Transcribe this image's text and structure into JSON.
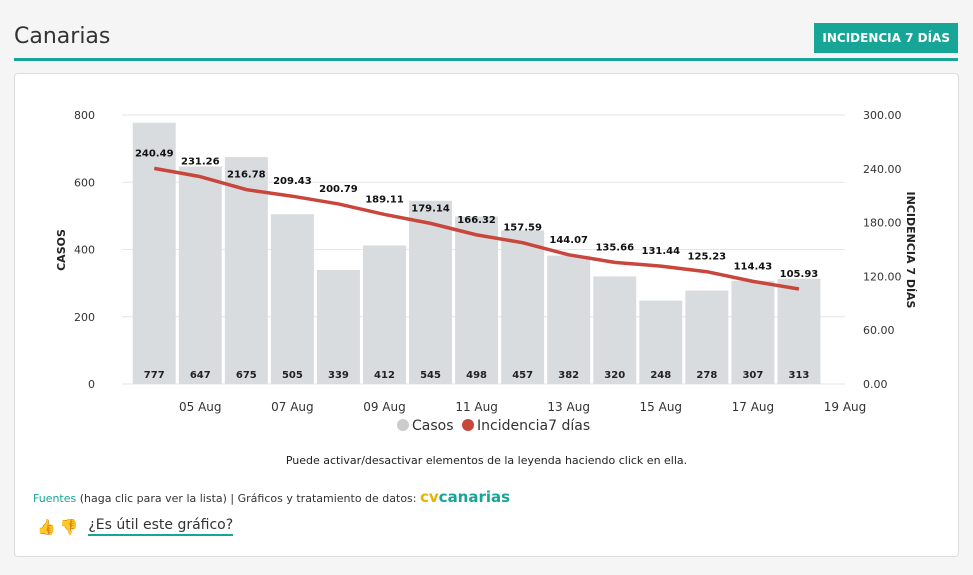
{
  "header": {
    "title": "Canarias",
    "badge": "INCIDENCIA 7 DÍAS"
  },
  "note": "Puede activar/desactivar elementos de la leyenda haciendo click en ella.",
  "sources": {
    "link": "Fuentes",
    "rest": " (haga clic para ver la lista) | Gráficos y tratamiento de datos: ",
    "brand_cv": "cv",
    "brand_name": "canarias"
  },
  "feedback": {
    "thumb_up": "👍",
    "thumb_down": "👎",
    "question": "¿Es útil este gráfico?"
  },
  "colors": {
    "accent": "#17a598",
    "bar": "#d9dcdf",
    "line": "#c9463d"
  },
  "chart_data": {
    "type": "bar+line",
    "title": "",
    "xlabel": "",
    "ylabel_left": "CASOS",
    "ylabel_right": "INCIDENCIA 7 DÍAS",
    "ylim_left": [
      0,
      800
    ],
    "ylim_right": [
      0,
      300
    ],
    "yticks_left": [
      "0",
      "200",
      "400",
      "600",
      "800"
    ],
    "yticks_right": [
      "0.00",
      "60.00",
      "120.00",
      "180.00",
      "240.00",
      "300.00"
    ],
    "x_ticks": [
      "05 Aug",
      "07 Aug",
      "09 Aug",
      "11 Aug",
      "13 Aug",
      "15 Aug",
      "17 Aug",
      "19 Aug"
    ],
    "x_range_days": [
      3.3,
      19
    ],
    "legend": [
      "Casos",
      "Incidencia7 días"
    ],
    "legend_position": "bottom",
    "series": [
      {
        "name": "Casos",
        "type": "bar",
        "x": [
          4,
          5,
          6,
          7,
          8,
          9,
          10,
          11,
          12,
          13,
          14,
          15,
          16,
          17,
          18
        ],
        "values": [
          777,
          647,
          675,
          505,
          339,
          412,
          545,
          498,
          457,
          382,
          320,
          248,
          278,
          307,
          313
        ],
        "labels": [
          "777",
          "647",
          "675",
          "505",
          "339",
          "412",
          "545",
          "498",
          "457",
          "382",
          "320",
          "248",
          "278",
          "307",
          "313"
        ]
      },
      {
        "name": "Incidencia7 días",
        "type": "line",
        "x": [
          4,
          5,
          6,
          7,
          8,
          9,
          10,
          11,
          12,
          13,
          14,
          15,
          16,
          17,
          18
        ],
        "values": [
          240.49,
          231.26,
          216.78,
          209.43,
          200.79,
          189.11,
          179.14,
          166.32,
          157.59,
          144.07,
          135.66,
          131.44,
          125.23,
          114.43,
          105.93
        ],
        "labels": [
          "240.49",
          "231.26",
          "216.78",
          "209.43",
          "200.79",
          "189.11",
          "179.14",
          "166.32",
          "157.59",
          "144.07",
          "135.66",
          "131.44",
          "125.23",
          "114.43",
          "105.93"
        ]
      }
    ]
  }
}
